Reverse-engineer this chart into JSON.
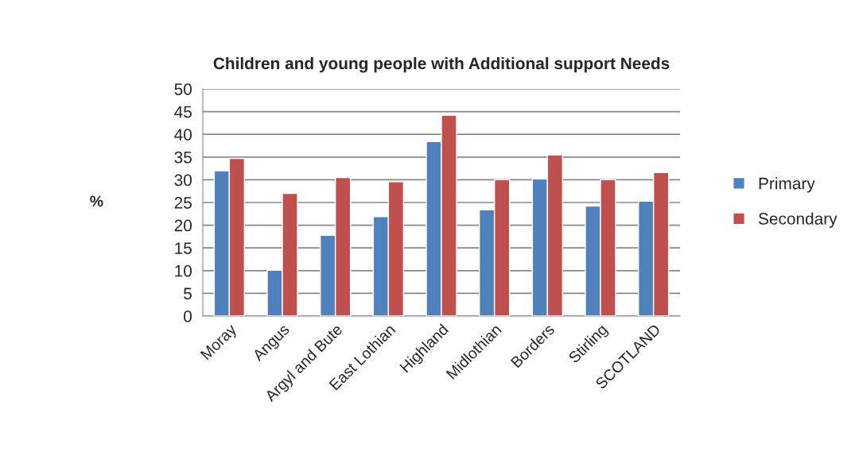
{
  "chart_data": {
    "type": "bar",
    "title": "Children and young people with Additional support Needs",
    "ylabel": "%",
    "categories": [
      "Moray",
      "Angus",
      "Argyl and Bute",
      "East Lothian",
      "Highland",
      "Midlothian",
      "Borders",
      "Stirling",
      "SCOTLAND"
    ],
    "series": [
      {
        "name": "Primary",
        "color": "#4f81bd",
        "values": [
          32.0,
          10.1,
          17.8,
          21.9,
          38.4,
          23.4,
          30.2,
          24.2,
          25.3
        ]
      },
      {
        "name": "Secondary",
        "color": "#c0504d",
        "values": [
          34.7,
          27.0,
          30.5,
          29.6,
          44.2,
          30.0,
          35.5,
          30.0,
          31.6
        ]
      }
    ],
    "ylim": [
      0,
      50
    ],
    "yticks": [
      0,
      5,
      10,
      15,
      20,
      25,
      30,
      35,
      40,
      45,
      50
    ],
    "grid": "y",
    "legend": "right"
  }
}
